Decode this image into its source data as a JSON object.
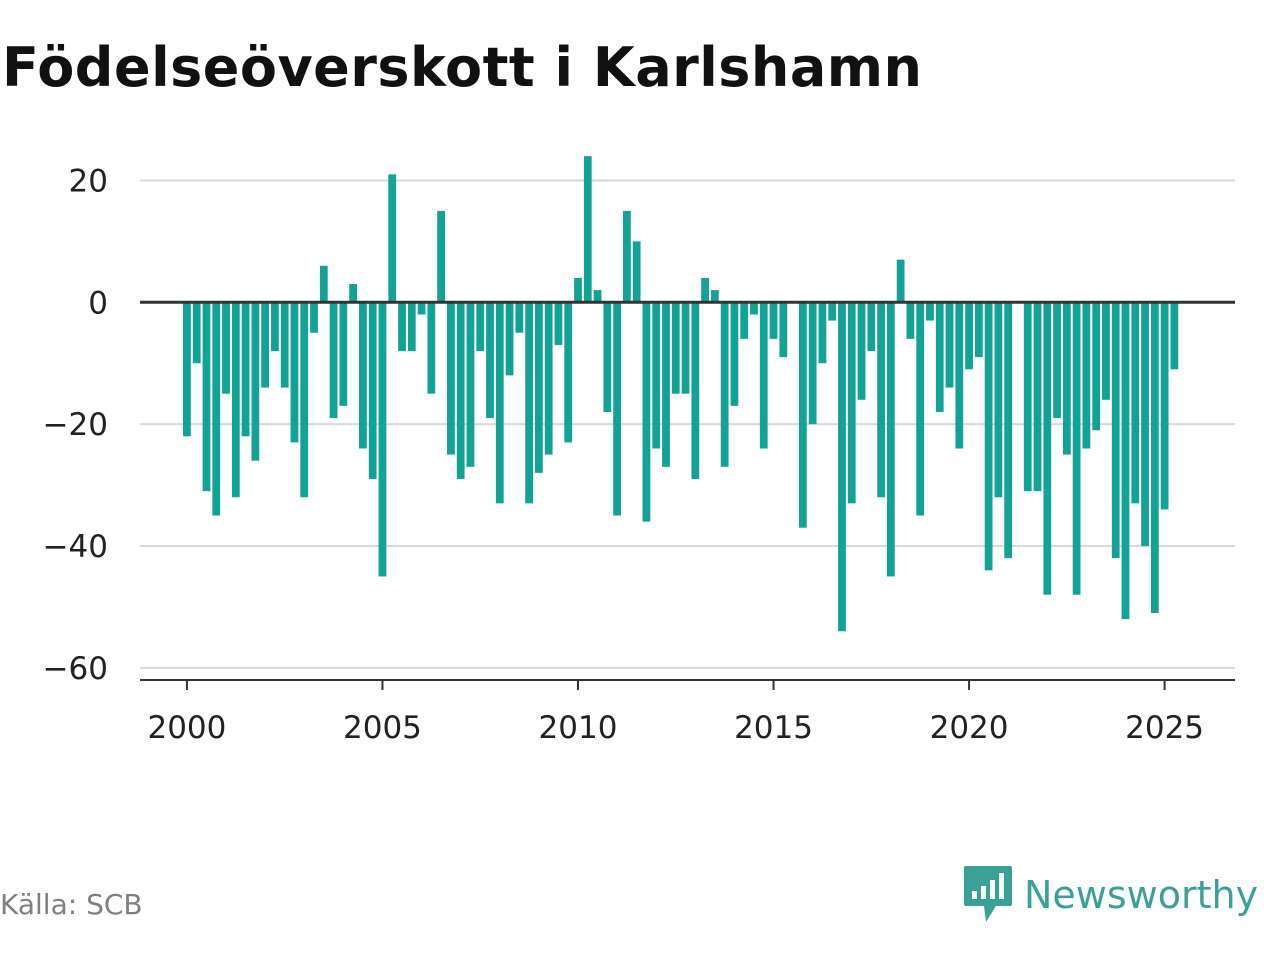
{
  "title": "Födelseöverskott i Karlshamn",
  "source": "Källa: SCB",
  "logo": {
    "text": "Newsworthy",
    "icon": "newsworthy-logo-icon"
  },
  "colors": {
    "bar": "#13a296",
    "grid": "#d9d9d9",
    "zero": "#333333",
    "logo": "#3aa197"
  },
  "chart_data": {
    "type": "bar",
    "title": "Födelseöverskott i Karlshamn",
    "xlabel": "",
    "ylabel": "",
    "x_ticks": [
      2000,
      2005,
      2010,
      2015,
      2020,
      2025
    ],
    "y_ticks": [
      20,
      0,
      -20,
      -40,
      -60
    ],
    "y_tick_labels": [
      "20",
      "0",
      "−20",
      "−40",
      "−60"
    ],
    "xlim": [
      1998.8,
      2026.8
    ],
    "ylim": [
      -62,
      25
    ],
    "grid": "horizontal",
    "x": [
      "2000-01",
      "2000-04",
      "2000-07",
      "2000-10",
      "2001-01",
      "2001-04",
      "2001-07",
      "2001-10",
      "2002-01",
      "2002-04",
      "2002-07",
      "2002-10",
      "2003-01",
      "2003-04",
      "2003-07",
      "2003-10",
      "2004-01",
      "2004-04",
      "2004-07",
      "2004-10",
      "2005-01",
      "2005-04",
      "2005-07",
      "2005-10",
      "2006-01",
      "2006-04",
      "2006-07",
      "2006-10",
      "2007-01",
      "2007-04",
      "2007-07",
      "2007-10",
      "2008-01",
      "2008-04",
      "2008-07",
      "2008-10",
      "2009-01",
      "2009-04",
      "2009-07",
      "2009-10",
      "2010-01",
      "2010-04",
      "2010-07",
      "2010-10",
      "2011-01",
      "2011-04",
      "2011-07",
      "2011-10",
      "2012-01",
      "2012-04",
      "2012-07",
      "2012-10",
      "2013-01",
      "2013-04",
      "2013-07",
      "2013-10",
      "2014-01",
      "2014-04",
      "2014-07",
      "2014-10",
      "2015-01",
      "2015-04",
      "2015-07",
      "2015-10",
      "2016-01",
      "2016-04",
      "2016-07",
      "2016-10",
      "2017-01",
      "2017-04",
      "2017-07",
      "2017-10",
      "2018-01",
      "2018-04",
      "2018-07",
      "2018-10",
      "2019-01",
      "2019-04",
      "2019-07",
      "2019-10",
      "2020-01",
      "2020-04",
      "2020-07",
      "2020-10",
      "2021-01",
      "2021-04",
      "2021-07",
      "2021-10",
      "2022-01",
      "2022-04",
      "2022-07",
      "2022-10",
      "2023-01",
      "2023-04",
      "2023-07",
      "2023-10",
      "2024-01",
      "2024-04",
      "2024-07",
      "2024-10",
      "2025-01",
      "2025-04"
    ],
    "values": [
      -22,
      -10,
      -31,
      -35,
      -15,
      -32,
      -22,
      -26,
      -14,
      -8,
      -14,
      -23,
      -32,
      -5,
      6,
      -19,
      -17,
      3,
      -24,
      -29,
      -45,
      21,
      -8,
      -8,
      -2,
      -15,
      15,
      -25,
      -29,
      -27,
      -8,
      -19,
      -33,
      -12,
      -5,
      -33,
      -28,
      -25,
      -7,
      -23,
      4,
      24,
      2,
      -18,
      -35,
      15,
      10,
      -36,
      -24,
      -27,
      -15,
      -15,
      -29,
      4,
      2,
      -27,
      -17,
      -6,
      -2,
      -24,
      -6,
      -9,
      null,
      -37,
      -20,
      -10,
      -3,
      -54,
      -33,
      -16,
      -8,
      -32,
      -45,
      7,
      -6,
      -35,
      -3,
      -18,
      -14,
      -24,
      -11,
      -9,
      -44,
      -32,
      -42,
      null,
      -31,
      -31,
      -48,
      -19,
      -25,
      -48,
      -24,
      -21,
      -16,
      -42,
      -52,
      -33,
      -40,
      -51,
      -34,
      -11
    ]
  }
}
